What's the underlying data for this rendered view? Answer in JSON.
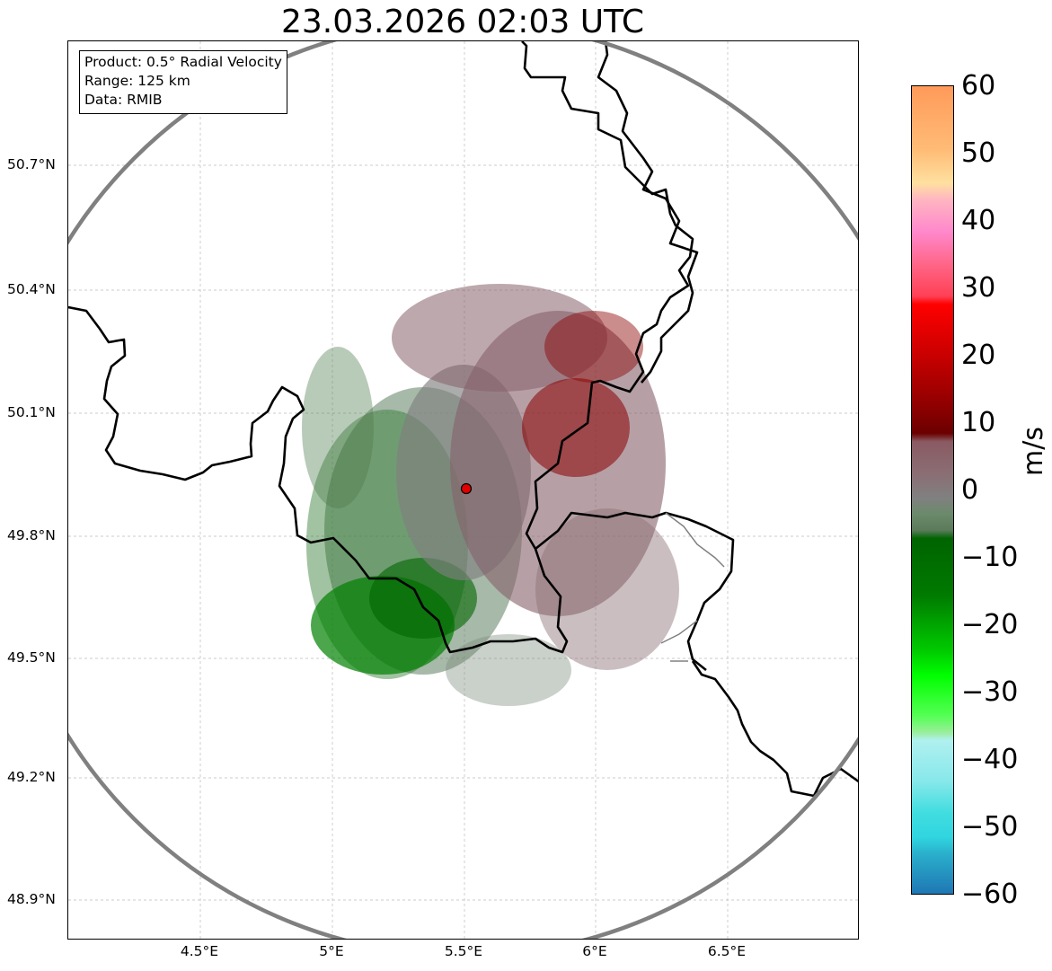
{
  "title": "23.03.2026 02:03 UTC",
  "info": {
    "product": "Product: 0.5° Radial Velocity",
    "range": "Range: 125 km",
    "source": "Data: RMIB"
  },
  "map": {
    "radar_site": {
      "lon": 5.5,
      "lat": 49.91
    },
    "range_km": 125,
    "lon_ticks": [
      "4.5°E",
      "5°E",
      "5.5°E",
      "6°E",
      "6.5°E"
    ],
    "lat_ticks": [
      "50.7°N",
      "50.4°N",
      "50.1°N",
      "49.8°N",
      "49.5°N",
      "49.2°N",
      "48.9°N"
    ]
  },
  "colorbar": {
    "label": "m/s",
    "ticks": [
      "60",
      "50",
      "40",
      "30",
      "20",
      "10",
      "0",
      "−10",
      "−20",
      "−30",
      "−40",
      "−50",
      "−60"
    ],
    "range": [
      -60,
      60
    ]
  },
  "colors": {
    "outbound_strong": "#ff9955",
    "outbound_mid": "#ff4d6a",
    "outbound_red": "#8b0000",
    "near_zero": "#808080",
    "inbound_green": "#007a00",
    "inbound_light": "#00ee00",
    "inbound_cyan": "#30d8e0",
    "inbound_blue": "#1f77b4",
    "border": "#000000",
    "range_ring": "#808080"
  }
}
